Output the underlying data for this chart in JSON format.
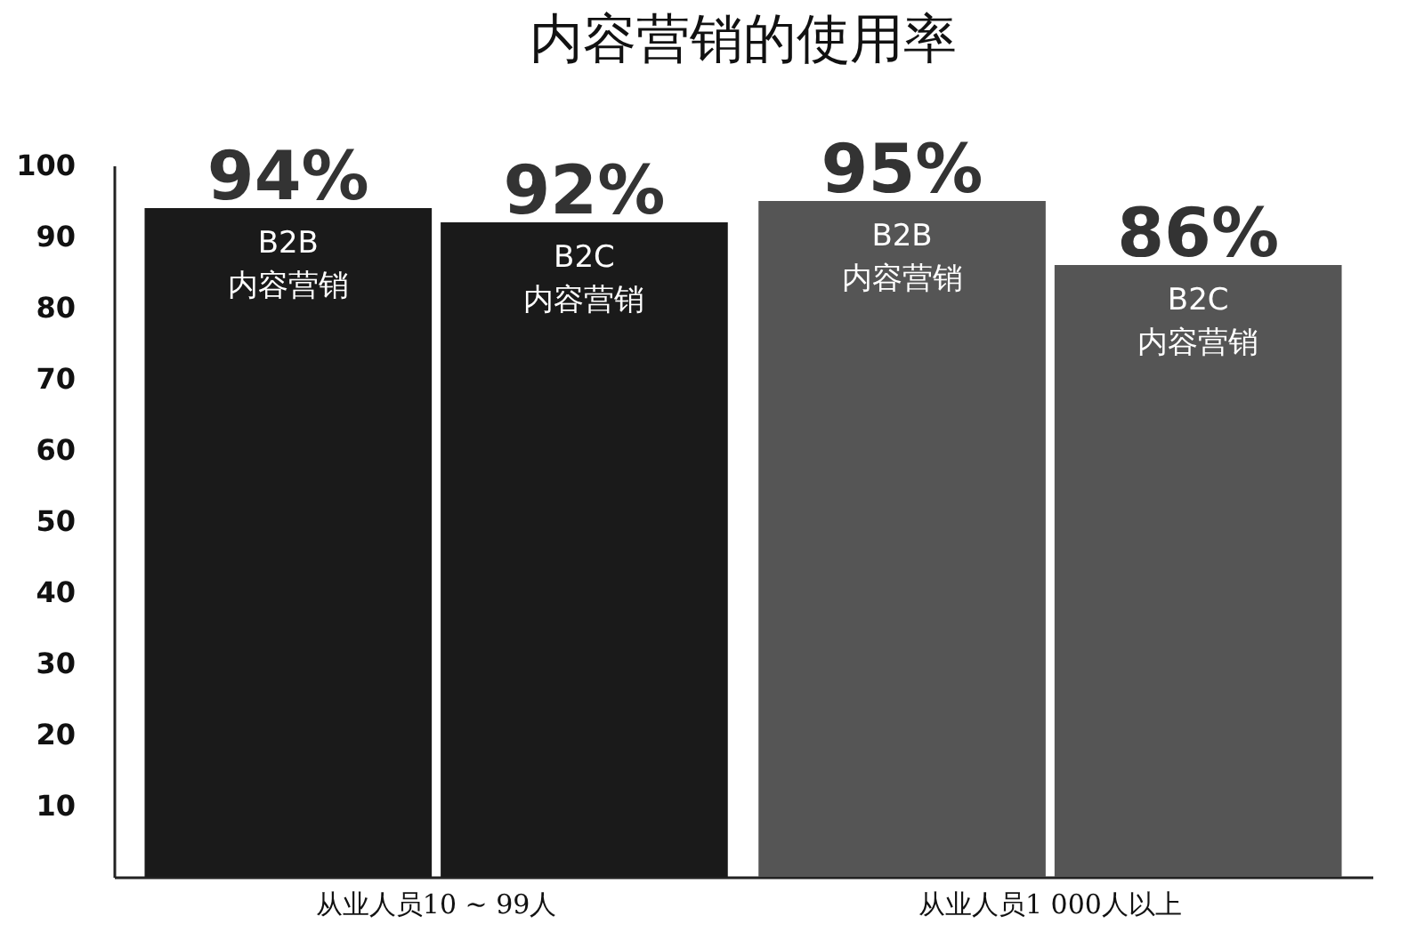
{
  "chart_data": {
    "type": "bar",
    "title": "内容营销的使用率",
    "categories": [
      "从业人员10 ~ 99人",
      "从业人员1 000人以上"
    ],
    "series": [
      {
        "name": "B2B 内容营销",
        "colors": [
          "#1a1a1a",
          "#555555"
        ],
        "values": [
          94,
          95
        ],
        "value_labels": [
          "94%",
          "95%"
        ]
      },
      {
        "name": "B2C 内容营销",
        "colors": [
          "#1a1a1a",
          "#555555"
        ],
        "values": [
          92,
          86
        ],
        "value_labels": [
          "92%",
          "86%"
        ]
      }
    ],
    "ylim": [
      0,
      100
    ],
    "yticks": [
      10,
      20,
      30,
      40,
      50,
      60,
      70,
      80,
      90,
      100
    ],
    "grid": false
  }
}
